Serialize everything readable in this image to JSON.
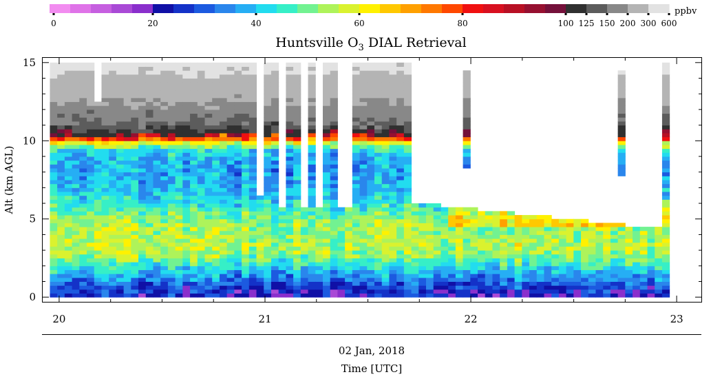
{
  "chart_data": {
    "type": "heatmap",
    "title": "Huntsville O",
    "title_subscript": "3",
    "title_tail": " DIAL Retrieval",
    "ylabel": "Alt (km AGL)",
    "xlabel": "Time [UTC]",
    "date_label": "02 Jan, 2018",
    "x_axis": {
      "ticks": [
        20,
        21,
        22,
        23
      ],
      "tick_labels": [
        "20",
        "21",
        "22",
        "23"
      ],
      "range": [
        19.92,
        23.12
      ],
      "unit": "hour UTC"
    },
    "y_axis": {
      "ticks": [
        0,
        5,
        10,
        15
      ],
      "tick_labels": [
        "0",
        "5",
        "10",
        "15"
      ],
      "range": [
        -0.3,
        15.3
      ],
      "unit": "km AGL"
    },
    "colorbar": {
      "unit": "ppbv",
      "tick_labels": [
        "0",
        "20",
        "40",
        "60",
        "80",
        "100",
        "125",
        "150",
        "200",
        "300",
        "600"
      ],
      "bins": [
        {
          "from": 0,
          "to": 4,
          "color": "#f28cf0"
        },
        {
          "from": 4,
          "to": 8,
          "color": "#df73e8"
        },
        {
          "from": 8,
          "to": 12,
          "color": "#c65fe0"
        },
        {
          "from": 12,
          "to": 16,
          "color": "#a94ad6"
        },
        {
          "from": 16,
          "to": 20,
          "color": "#8a2fcc"
        },
        {
          "from": 20,
          "to": 24,
          "color": "#1010a6"
        },
        {
          "from": 24,
          "to": 28,
          "color": "#1432c8"
        },
        {
          "from": 28,
          "to": 32,
          "color": "#1c5ae0"
        },
        {
          "from": 32,
          "to": 36,
          "color": "#2a86ec"
        },
        {
          "from": 36,
          "to": 40,
          "color": "#26aef4"
        },
        {
          "from": 40,
          "to": 44,
          "color": "#22dcef"
        },
        {
          "from": 44,
          "to": 48,
          "color": "#36efc7"
        },
        {
          "from": 48,
          "to": 52,
          "color": "#72f291"
        },
        {
          "from": 52,
          "to": 56,
          "color": "#aef35a"
        },
        {
          "from": 56,
          "to": 60,
          "color": "#daf22f"
        },
        {
          "from": 60,
          "to": 64,
          "color": "#fff100"
        },
        {
          "from": 64,
          "to": 68,
          "color": "#ffc800"
        },
        {
          "from": 68,
          "to": 72,
          "color": "#ffa000"
        },
        {
          "from": 72,
          "to": 76,
          "color": "#ff7800"
        },
        {
          "from": 76,
          "to": 80,
          "color": "#ff4800"
        },
        {
          "from": 80,
          "to": 84,
          "color": "#f01010"
        },
        {
          "from": 84,
          "to": 88,
          "color": "#d81020"
        },
        {
          "from": 88,
          "to": 92,
          "color": "#b81024"
        },
        {
          "from": 92,
          "to": 96,
          "color": "#961030"
        },
        {
          "from": 96,
          "to": 100,
          "color": "#74103a"
        },
        {
          "from": 100,
          "to": 125,
          "color": "#303030"
        },
        {
          "from": 125,
          "to": 150,
          "color": "#5c5c5c"
        },
        {
          "from": 150,
          "to": 200,
          "color": "#888888"
        },
        {
          "from": 200,
          "to": 300,
          "color": "#b4b4b4"
        },
        {
          "from": 300,
          "to": 600,
          "color": "#e2e2e2"
        }
      ]
    },
    "time_bins": {
      "start": 19.955,
      "end": 22.965,
      "count": 84
    },
    "altitude_bins": {
      "start": 0,
      "end": 15,
      "count": 60
    },
    "profile_mean_ppbv": [
      {
        "alt_km": 0.0,
        "o3": 22
      },
      {
        "alt_km": 0.3,
        "o3": 24
      },
      {
        "alt_km": 0.8,
        "o3": 29
      },
      {
        "alt_km": 1.5,
        "o3": 37
      },
      {
        "alt_km": 2.0,
        "o3": 44
      },
      {
        "alt_km": 2.6,
        "o3": 51
      },
      {
        "alt_km": 3.2,
        "o3": 55
      },
      {
        "alt_km": 4.0,
        "o3": 54
      },
      {
        "alt_km": 5.0,
        "o3": 52
      },
      {
        "alt_km": 5.5,
        "o3": 47
      },
      {
        "alt_km": 6.5,
        "o3": 40
      },
      {
        "alt_km": 8.0,
        "o3": 36
      },
      {
        "alt_km": 9.3,
        "o3": 40
      },
      {
        "alt_km": 9.8,
        "o3": 55
      },
      {
        "alt_km": 10.1,
        "o3": 74
      },
      {
        "alt_km": 10.3,
        "o3": 90
      },
      {
        "alt_km": 10.6,
        "o3": 112
      },
      {
        "alt_km": 11.0,
        "o3": 140
      },
      {
        "alt_km": 12.0,
        "o3": 175
      },
      {
        "alt_km": 13.5,
        "o3": 250
      },
      {
        "alt_km": 15.0,
        "o3": 330
      }
    ],
    "data_top_km": [
      {
        "from": 19.955,
        "to": 20.955,
        "top": 15
      },
      {
        "from": 20.955,
        "to": 21.7,
        "top": 15
      },
      {
        "from": 21.7,
        "to": 22.92,
        "top": 5.5
      },
      {
        "from": 22.92,
        "to": 22.965,
        "top": 15
      }
    ],
    "missing_windows": [
      {
        "from": 20.18,
        "to": 20.215,
        "above_km": 12.5
      },
      {
        "from": 20.955,
        "to": 20.995,
        "above_km": 6.5
      },
      {
        "from": 21.075,
        "to": 21.11,
        "above_km": 5.8
      },
      {
        "from": 21.17,
        "to": 21.21,
        "above_km": 5.8
      },
      {
        "from": 21.245,
        "to": 21.28,
        "above_km": 5.8
      },
      {
        "from": 21.36,
        "to": 21.43,
        "above_km": 5.8
      }
    ],
    "isolated_profiles": [
      {
        "from": 21.955,
        "to": 21.985,
        "from_km": 8.2,
        "to_km": 14.5
      },
      {
        "from": 22.73,
        "to": 22.765,
        "from_km": 7.7,
        "to_km": 14.5
      }
    ]
  }
}
